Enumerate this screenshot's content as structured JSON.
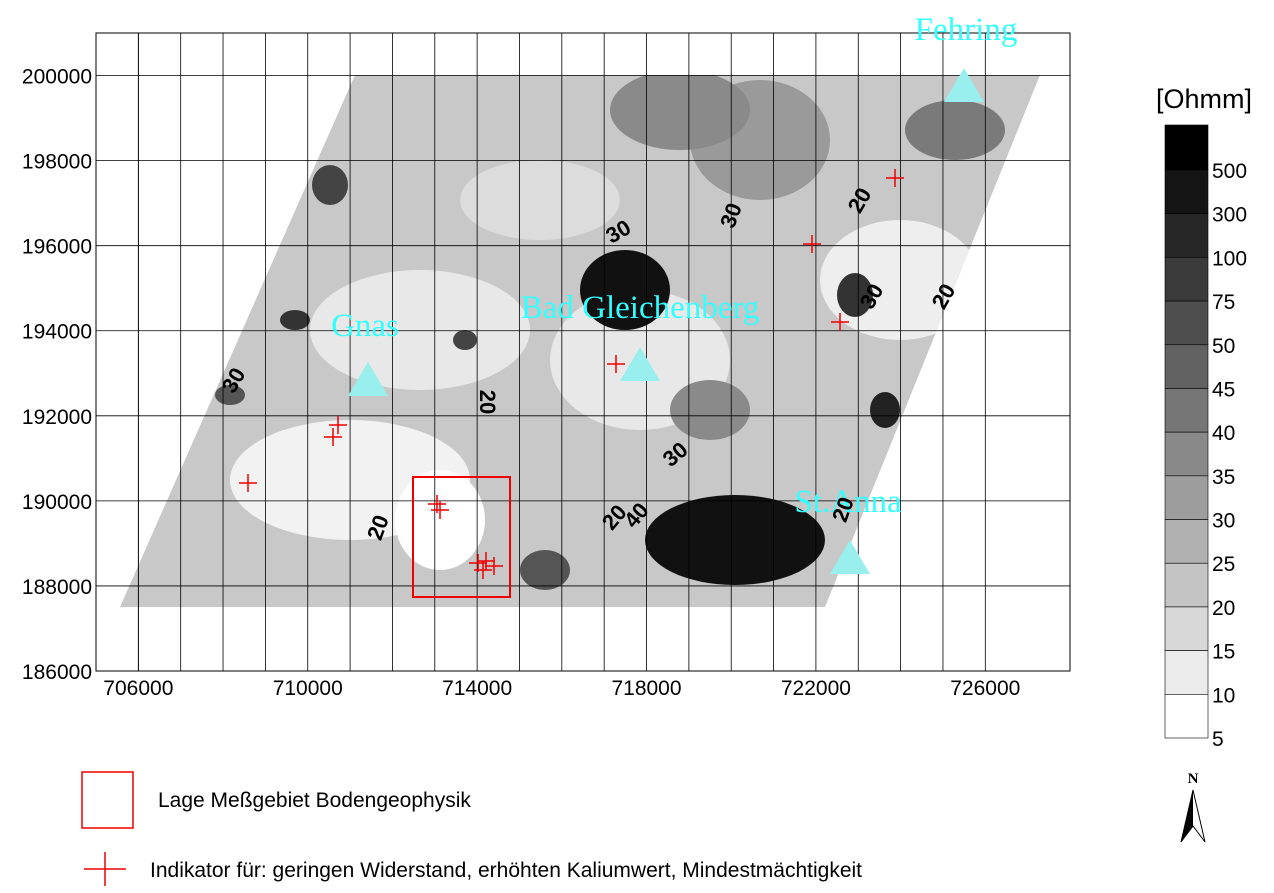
{
  "map": {
    "type": "contour-map",
    "xticks": [
      706000,
      710000,
      714000,
      718000,
      722000,
      726000
    ],
    "yticks": [
      186000,
      188000,
      190000,
      192000,
      194000,
      196000,
      198000,
      200000
    ],
    "xlim": [
      705000,
      728000
    ],
    "ylim": [
      186000,
      201000
    ],
    "places": [
      "Fehring",
      "Bad Gleichenberg",
      "Gnas",
      "St.Anna"
    ],
    "contour_labels": [
      "20",
      "30",
      "30",
      "20",
      "30",
      "20",
      "30",
      "20",
      "30",
      "20",
      "40",
      "20"
    ],
    "colorbar": {
      "title": "[Ohmm]",
      "levels": [
        "500",
        "300",
        "100",
        "75",
        "50",
        "45",
        "40",
        "35",
        "30",
        "25",
        "20",
        "15",
        "10",
        "5"
      ]
    },
    "north": "N",
    "legend": [
      "Lage Meßgebiet Bodengeophysik",
      "Indikator für:  geringen Widerstand, erhöhten Kaliumwert, Mindestmächtigkeit"
    ]
  }
}
